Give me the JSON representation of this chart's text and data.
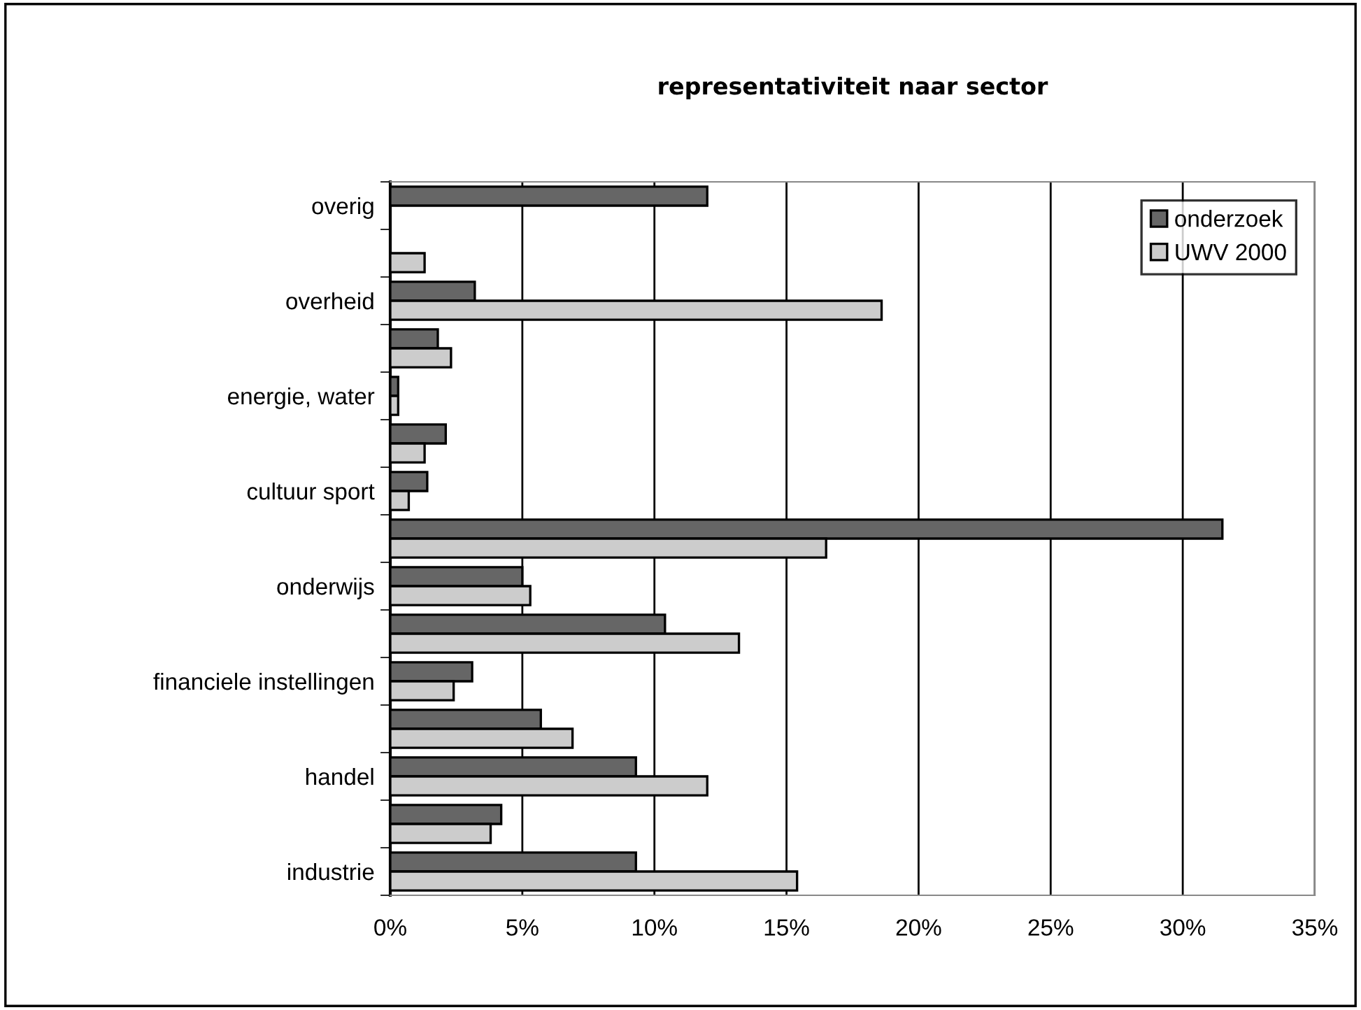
{
  "chart_data": {
    "type": "bar",
    "orientation": "horizontal",
    "title": "representativiteit naar sector",
    "categories": [
      "overig",
      null,
      "overheid",
      null,
      "energie, water",
      null,
      "cultuur sport",
      null,
      "onderwijs",
      null,
      "financiele instellingen",
      null,
      "handel",
      null,
      "industrie"
    ],
    "series": [
      {
        "name": "onderzoek",
        "color": "#666666",
        "values": [
          12.0,
          null,
          3.2,
          1.8,
          0.3,
          2.1,
          1.4,
          31.5,
          5.0,
          10.4,
          3.1,
          5.7,
          9.3,
          4.2,
          9.3
        ]
      },
      {
        "name": "UWV 2000",
        "color": "#cccccc",
        "values": [
          null,
          1.3,
          18.6,
          2.3,
          0.3,
          1.3,
          0.7,
          16.5,
          5.3,
          13.2,
          2.4,
          6.9,
          12.0,
          3.8,
          15.4
        ]
      }
    ],
    "xlim": [
      0,
      35
    ],
    "xticks": [
      {
        "value": 0,
        "label": "0%"
      },
      {
        "value": 5,
        "label": "5%"
      },
      {
        "value": 10,
        "label": "10%"
      },
      {
        "value": 15,
        "label": "15%"
      },
      {
        "value": 20,
        "label": "20%"
      },
      {
        "value": 25,
        "label": "25%"
      },
      {
        "value": 30,
        "label": "30%"
      },
      {
        "value": 35,
        "label": "35%"
      }
    ],
    "grid": "x",
    "legend": "top right"
  }
}
